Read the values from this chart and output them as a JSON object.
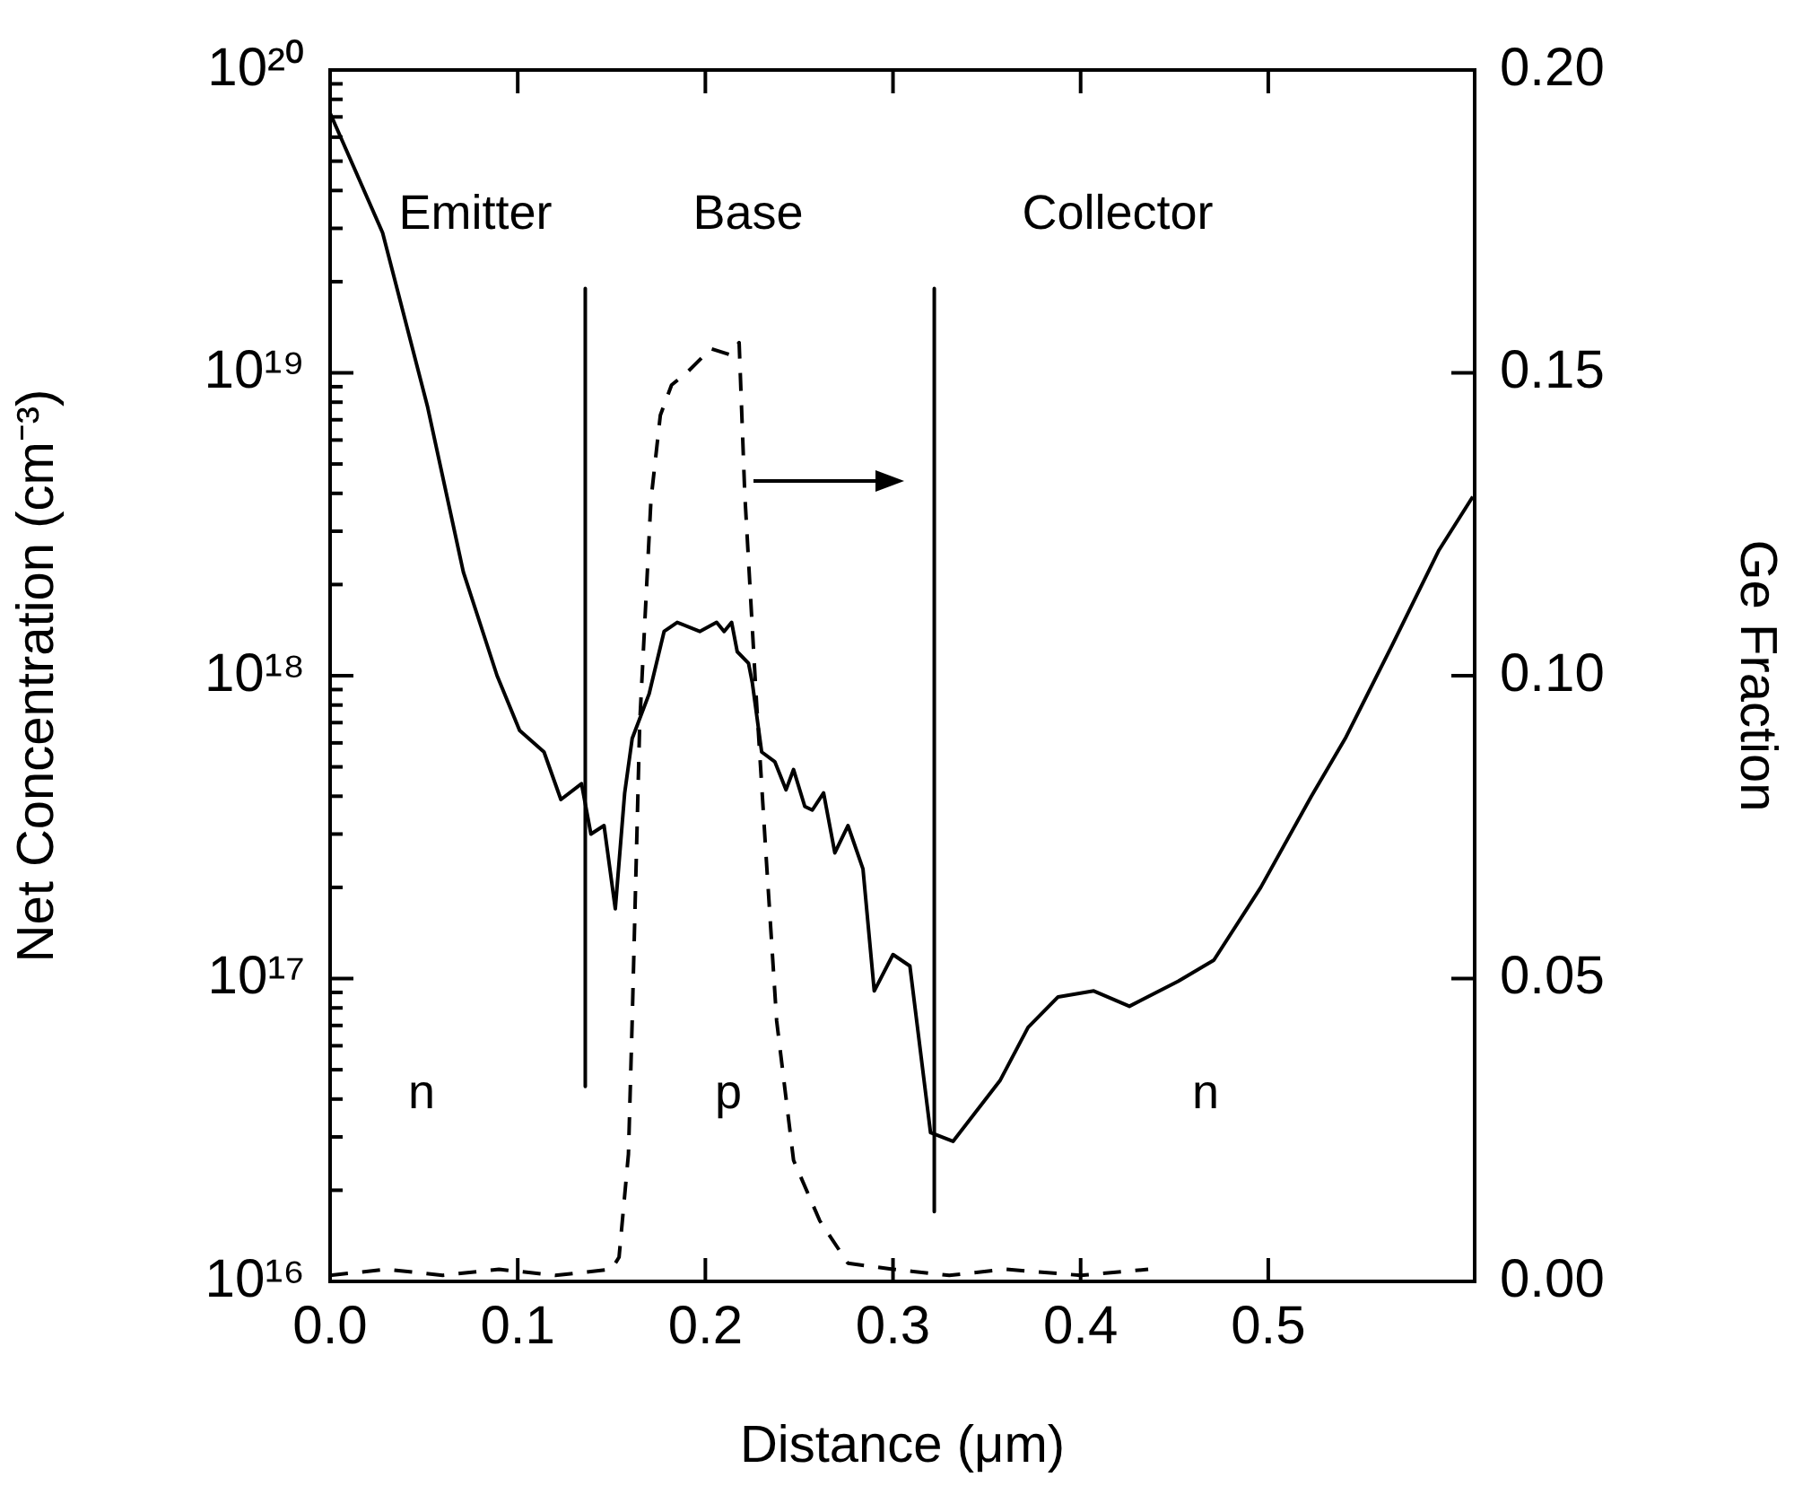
{
  "chart_data": {
    "type": "line",
    "xlabel": "Distance (μm)",
    "ylabel": "Net Concentration (cm⁻³)",
    "y2label": "Ge Fraction",
    "log": "y",
    "grid": false,
    "legend": false,
    "marker": "none",
    "xlim": [
      0,
      0.61
    ],
    "xticks": [
      {
        "value": 0,
        "label": "0.0"
      },
      0.1,
      0.2,
      0.3,
      0.4,
      0.5
    ],
    "ylim": [
      1e+16,
      1e+20
    ],
    "yticks": [
      {
        "value": 1e+16,
        "label": "10¹⁶"
      },
      {
        "value": 2e+16,
        "label": null
      },
      {
        "value": 3e+16,
        "label": null
      },
      {
        "value": 4e+16,
        "label": null
      },
      {
        "value": 5e+16,
        "label": null
      },
      {
        "value": 6e+16,
        "label": null
      },
      {
        "value": 7e+16,
        "label": null
      },
      {
        "value": 8e+16,
        "label": null
      },
      {
        "value": 9e+16,
        "label": null
      },
      {
        "value": 1e+17,
        "label": "10¹⁷"
      },
      {
        "value": 2e+17,
        "label": null
      },
      {
        "value": 3e+17,
        "label": null
      },
      {
        "value": 4e+17,
        "label": null
      },
      {
        "value": 5e+17,
        "label": null
      },
      {
        "value": 6e+17,
        "label": null
      },
      {
        "value": 7e+17,
        "label": null
      },
      {
        "value": 8e+17,
        "label": null
      },
      {
        "value": 9e+17,
        "label": null
      },
      {
        "value": 1e+18,
        "label": "10¹⁸"
      },
      {
        "value": 2e+18,
        "label": null
      },
      {
        "value": 3e+18,
        "label": null
      },
      {
        "value": 4e+18,
        "label": null
      },
      {
        "value": 5e+18,
        "label": null
      },
      {
        "value": 6e+18,
        "label": null
      },
      {
        "value": 7e+18,
        "label": null
      },
      {
        "value": 8e+18,
        "label": null
      },
      {
        "value": 9e+18,
        "label": null
      },
      {
        "value": 1e+19,
        "label": "10¹⁹"
      },
      {
        "value": 2e+19,
        "label": null
      },
      {
        "value": 3e+19,
        "label": null
      },
      {
        "value": 4e+19,
        "label": null
      },
      {
        "value": 5e+19,
        "label": null
      },
      {
        "value": 6e+19,
        "label": null
      },
      {
        "value": 7e+19,
        "label": null
      },
      {
        "value": 8e+19,
        "label": null
      },
      {
        "value": 9e+19,
        "label": null
      },
      {
        "value": 1e+20,
        "label": "10²⁰"
      }
    ],
    "y2lim": [
      0,
      0.2
    ],
    "y2ticks": [
      {
        "value": 0,
        "label": "0.00"
      },
      0.05,
      {
        "value": 0.1,
        "label": "0.10"
      },
      0.15,
      {
        "value": 0.2,
        "label": "0.20"
      }
    ],
    "series": [
      {
        "type": "line",
        "color": "#000000",
        "line_style": "solid",
        "x": [
          0,
          0.028,
          0.052,
          0.071,
          0.089,
          0.101,
          0.114,
          0.123,
          0.134,
          0.139,
          0.146,
          0.152,
          0.157,
          0.161,
          0.17,
          0.178,
          0.185,
          0.197,
          0.206,
          0.21,
          0.214,
          0.217,
          0.223,
          0.225,
          0.23,
          0.237,
          0.243,
          0.247,
          0.253,
          0.257,
          0.263,
          0.269,
          0.276,
          0.284,
          0.29,
          0.3,
          0.309,
          0.32,
          0.332,
          0.357,
          0.372,
          0.388,
          0.407,
          0.426,
          0.452,
          0.471,
          0.496,
          0.523,
          0.541,
          0.566,
          0.591,
          0.609
        ],
        "values": [
          7.2e+19,
          2.9e+19,
          7.7e+18,
          2.2e+18,
          1e+18,
          6.6e+17,
          5.6e+17,
          3.9e+17,
          4.4e+17,
          3e+17,
          3.2e+17,
          1.7e+17,
          4.1e+17,
          6.2e+17,
          8.7e+17,
          1.4e+18,
          1.5e+18,
          1.4e+18,
          1.5e+18,
          1.4e+18,
          1.5e+18,
          1.2e+18,
          1.1e+18,
          9.5e+17,
          5.6e+17,
          5.2e+17,
          4.2e+17,
          4.9e+17,
          3.7e+17,
          3.6e+17,
          4.1e+17,
          2.6e+17,
          3.2e+17,
          2.3e+17,
          9.1e+16,
          1.2e+17,
          1.1e+17,
          3.1e+16,
          2.9e+16,
          4.6e+16,
          6.9e+16,
          8.7e+16,
          9.1e+16,
          8.1e+16,
          9.8e+16,
          1.15e+17,
          2e+17,
          4e+17,
          6.2e+17,
          1.26e+18,
          2.6e+18,
          3.9e+18
        ]
      },
      {
        "type": "line",
        "color": "#000000",
        "line_style": "dashed",
        "axis": "y2",
        "x": [
          0,
          0.03,
          0.06,
          0.09,
          0.12,
          0.15,
          0.154,
          0.159,
          0.161,
          0.165,
          0.171,
          0.176,
          0.182,
          0.19,
          0.203,
          0.213,
          0.218,
          0.221,
          0.227,
          0.232,
          0.238,
          0.247,
          0.261,
          0.276,
          0.3,
          0.33,
          0.36,
          0.4,
          0.436
        ],
        "values": [
          0.001,
          0.002,
          0.001,
          0.002,
          0.001,
          0.002,
          0.004,
          0.021,
          0.043,
          0.092,
          0.129,
          0.143,
          0.148,
          0.15,
          0.154,
          0.153,
          0.155,
          0.13,
          0.097,
          0.072,
          0.043,
          0.02,
          0.01,
          0.003,
          0.002,
          0.001,
          0.002,
          0.001,
          0.002
        ]
      },
      {
        "type": "line",
        "color": "#000000",
        "line_style": "solid",
        "x": [
          0.136,
          0.136
        ],
        "values": [
          1.9e+19,
          4.4e+16
        ]
      },
      {
        "type": "line",
        "color": "#000000",
        "line_style": "solid",
        "x": [
          0.322,
          0.322
        ],
        "values": [
          1.9e+19,
          1.7e+16
        ]
      }
    ],
    "annotations": [
      "Emitter",
      "Base",
      "Collector",
      "n",
      "p",
      "n"
    ]
  }
}
